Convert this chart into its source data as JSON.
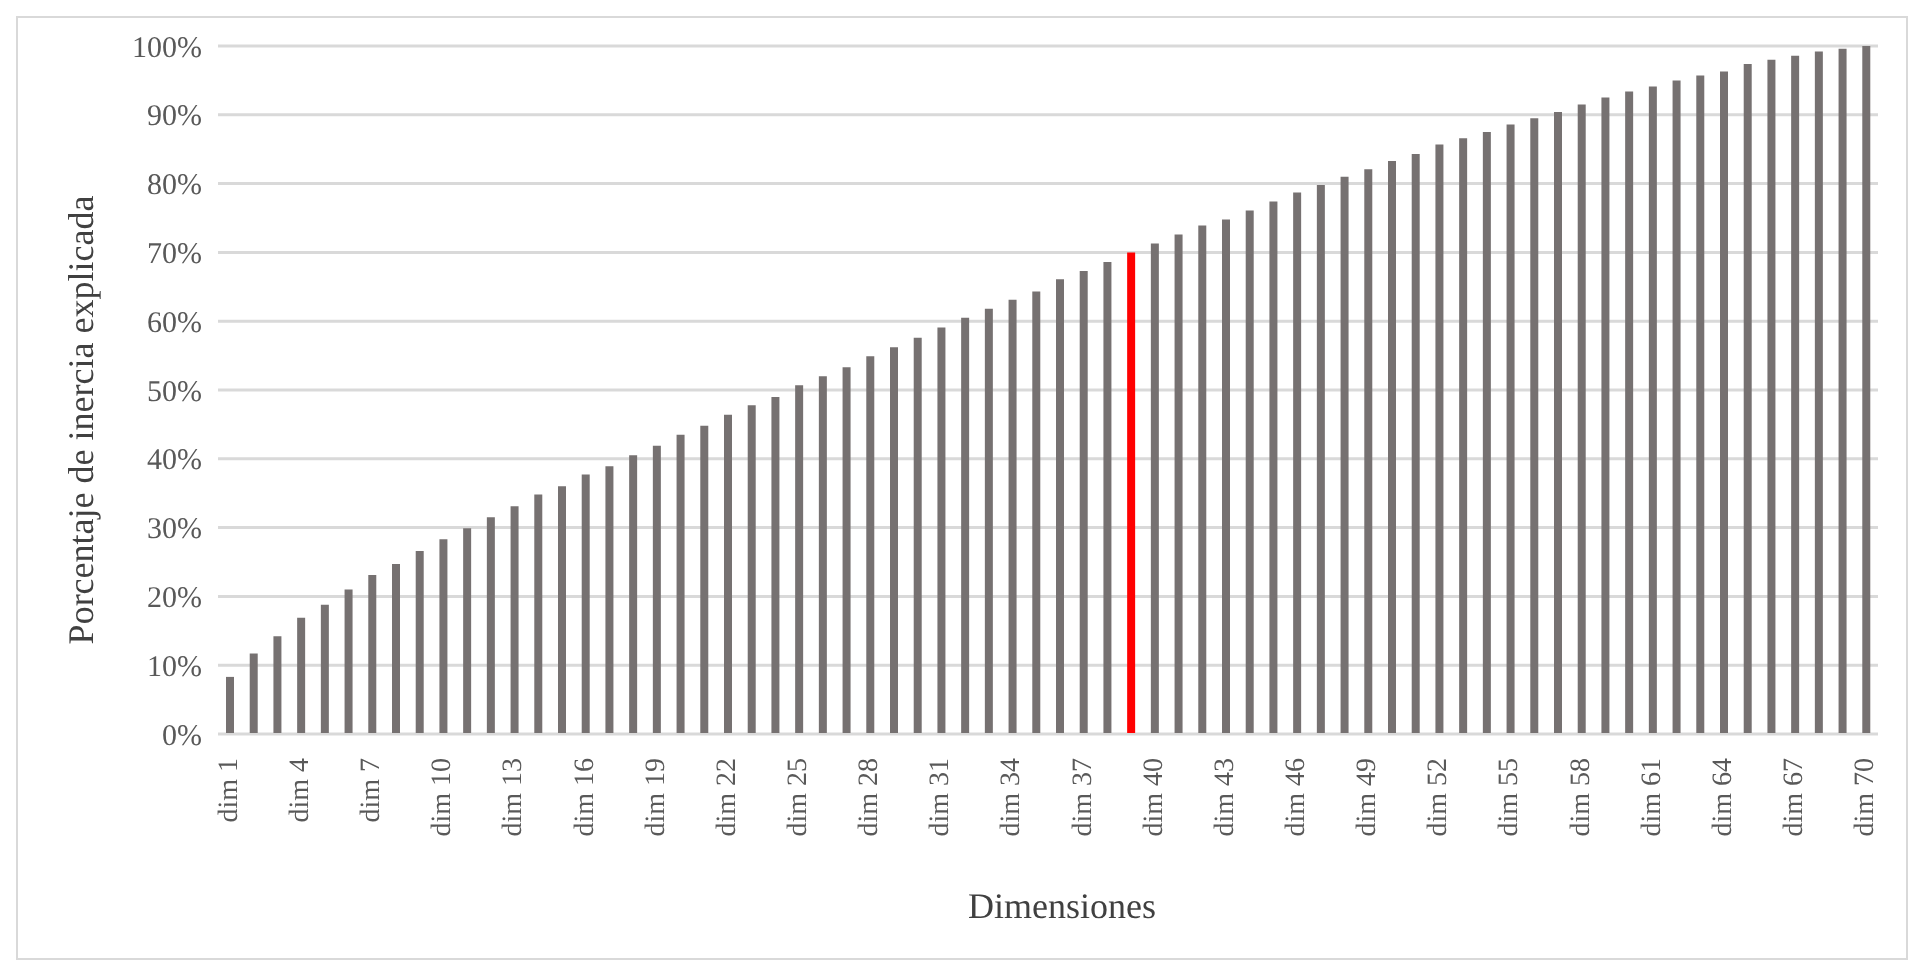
{
  "chart_data": {
    "type": "bar",
    "xlabel": "Dimensiones",
    "ylabel": "Porcentaje de inercia explicada",
    "categories": [
      "dim 1",
      null,
      null,
      "dim 4",
      null,
      null,
      "dim 7",
      null,
      null,
      "dim 10",
      null,
      null,
      "dim 13",
      null,
      null,
      "dim 16",
      null,
      null,
      "dim 19",
      null,
      null,
      "dim 22",
      null,
      null,
      "dim 25",
      null,
      null,
      "dim 28",
      null,
      null,
      "dim 31",
      null,
      null,
      "dim 34",
      null,
      null,
      "dim 37",
      null,
      null,
      "dim 40",
      null,
      null,
      "dim 43",
      null,
      null,
      "dim 46",
      null,
      null,
      "dim 49",
      null,
      null,
      "dim 52",
      null,
      null,
      "dim 55",
      null,
      null,
      "dim 58",
      null,
      null,
      "dim 61",
      null,
      null,
      "dim 64",
      null,
      null,
      "dim 67",
      null,
      null,
      "dim 70"
    ],
    "values": [
      8.3,
      11.7,
      14.2,
      16.9,
      18.8,
      21.0,
      23.1,
      24.7,
      26.6,
      28.3,
      29.9,
      31.5,
      33.1,
      34.8,
      36.0,
      37.7,
      38.9,
      40.5,
      41.9,
      43.5,
      44.8,
      46.4,
      47.8,
      49.0,
      50.7,
      52.0,
      53.3,
      54.9,
      56.2,
      57.6,
      59.1,
      60.5,
      61.8,
      63.1,
      64.3,
      66.1,
      67.3,
      68.6,
      70.0,
      71.3,
      72.6,
      73.9,
      74.8,
      76.1,
      77.4,
      78.7,
      79.8,
      81.0,
      82.1,
      83.3,
      84.3,
      85.7,
      86.6,
      87.5,
      88.6,
      89.5,
      90.4,
      91.5,
      92.5,
      93.4,
      94.1,
      95.0,
      95.7,
      96.3,
      97.4,
      98.0,
      98.6,
      99.2,
      99.6,
      100
    ],
    "colors": [
      "#767171",
      "#767171",
      "#767171",
      "#767171",
      "#767171",
      "#767171",
      "#767171",
      "#767171",
      "#767171",
      "#767171",
      "#767171",
      "#767171",
      "#767171",
      "#767171",
      "#767171",
      "#767171",
      "#767171",
      "#767171",
      "#767171",
      "#767171",
      "#767171",
      "#767171",
      "#767171",
      "#767171",
      "#767171",
      "#767171",
      "#767171",
      "#767171",
      "#767171",
      "#767171",
      "#767171",
      "#767171",
      "#767171",
      "#767171",
      "#767171",
      "#767171",
      "#767171",
      "#767171",
      "#ff0000",
      "#767171",
      "#767171",
      "#767171",
      "#767171",
      "#767171",
      "#767171",
      "#767171",
      "#767171",
      "#767171",
      "#767171",
      "#767171",
      "#767171",
      "#767171",
      "#767171",
      "#767171",
      "#767171",
      "#767171",
      "#767171",
      "#767171",
      "#767171",
      "#767171",
      "#767171",
      "#767171",
      "#767171",
      "#767171",
      "#767171",
      "#767171",
      "#767171",
      "#767171",
      "#767171",
      "#767171"
    ],
    "ylim": [
      0,
      100
    ],
    "yticks": [
      {
        "value": 0,
        "label": "0%"
      },
      {
        "value": 10,
        "label": "10%"
      },
      {
        "value": 20,
        "label": "20%"
      },
      {
        "value": 30,
        "label": "30%"
      },
      {
        "value": 40,
        "label": "40%"
      },
      {
        "value": 50,
        "label": "50%"
      },
      {
        "value": 60,
        "label": "60%"
      },
      {
        "value": 70,
        "label": "70%"
      },
      {
        "value": 80,
        "label": "80%"
      },
      {
        "value": 90,
        "label": "90%"
      },
      {
        "value": 100,
        "label": "100%"
      }
    ],
    "grid": "y",
    "legend": false
  }
}
